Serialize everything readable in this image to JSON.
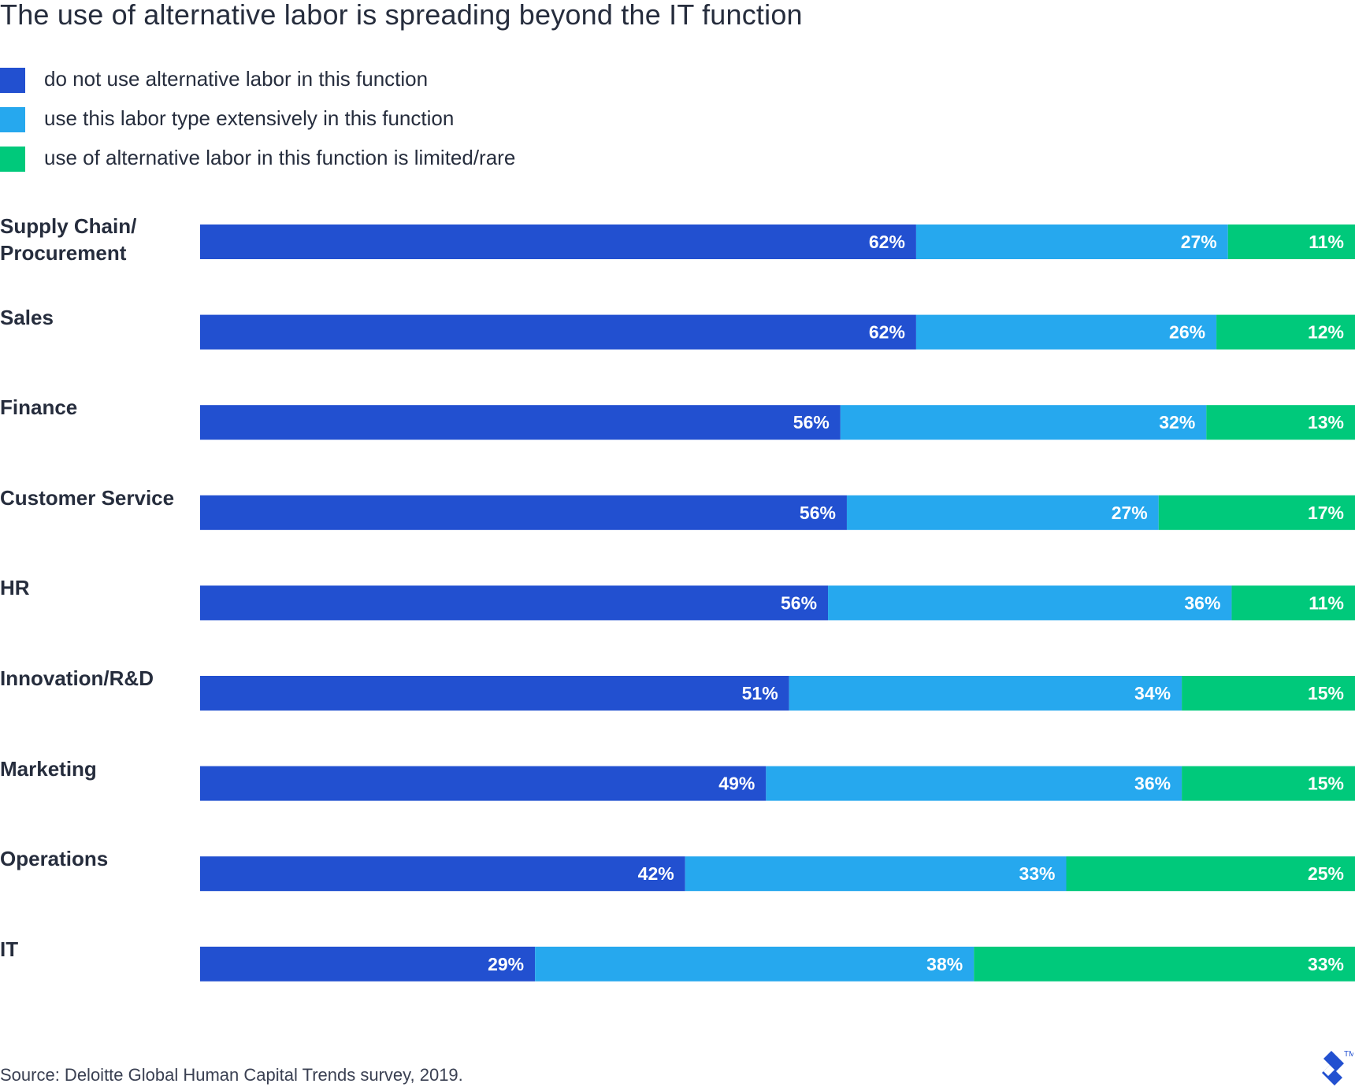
{
  "colors": {
    "dark_blue": "#2250d0",
    "light_blue": "#26a8ee",
    "green": "#00c97b",
    "text": "#262d3d"
  },
  "chart_data": {
    "type": "bar",
    "orientation": "horizontal",
    "stacked": true,
    "title": "The use of alternative labor is spreading beyond the IT function",
    "categories": [
      "Supply Chain/ Procurement",
      "Sales",
      "Finance",
      "Customer Service",
      "HR",
      "Innovation/R&D",
      "Marketing",
      "Operations",
      "IT"
    ],
    "series": [
      {
        "name": "do not use alternative labor in this function",
        "color": "#2250d0",
        "values": [
          62,
          62,
          56,
          56,
          56,
          51,
          49,
          42,
          29
        ],
        "labels": [
          "62%",
          "62%",
          "56%",
          "56%",
          "56%",
          "51%",
          "49%",
          "42%",
          "29%"
        ]
      },
      {
        "name": "use this labor type extensively in this function",
        "color": "#26a8ee",
        "values": [
          27,
          26,
          32,
          27,
          36,
          34,
          36,
          33,
          38
        ],
        "labels": [
          "27%",
          "26%",
          "32%",
          "27%",
          "36%",
          "34%",
          "36%",
          "33%",
          "38%"
        ]
      },
      {
        "name": "use of alternative labor in this function is limited/rare",
        "color": "#00c97b",
        "values": [
          11,
          12,
          13,
          17,
          11,
          15,
          15,
          25,
          33
        ],
        "labels": [
          "11%",
          "12%",
          "13%",
          "17%",
          "11%",
          "15%",
          "15%",
          "25%",
          "33%"
        ]
      }
    ],
    "grid": false,
    "legend_position": "top-left",
    "source": "Source: Deloitte Global Human Capital Trends survey, 2019."
  },
  "logo": {
    "icon": "toptal-logo-icon",
    "trademark": "TM"
  }
}
